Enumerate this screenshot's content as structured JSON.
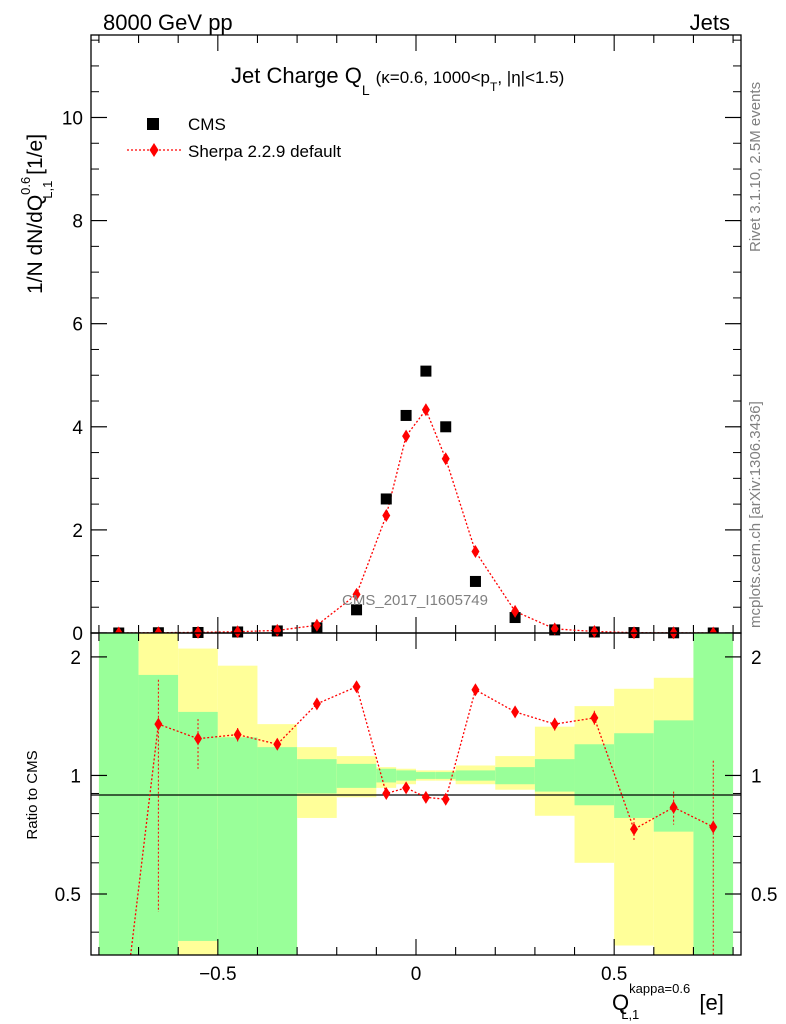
{
  "header": {
    "left": "8000 GeV pp",
    "right": "Jets"
  },
  "side_text": {
    "version": "Rivet 3.1.10,  2.5M events",
    "source": "mcplots.cern.ch [arXiv:1306.3436]"
  },
  "chart_data": [
    {
      "type": "scatter",
      "panel": "main",
      "title": "Jet Charge Q",
      "title_sub": "L",
      "title_extra": "(κ=0.6, 1000<p",
      "title_extra_sub": "T",
      "title_extra_end": ", |η|<1.5)",
      "ylabel": "1/N dN/dQ",
      "ylabel_sup": "0.6",
      "ylabel_sub": "L,1",
      "ylabel_unit": " [1/e]",
      "watermark": "CMS_2017_I1605749",
      "xlim": [
        -0.82,
        0.82
      ],
      "ylim": [
        0,
        11.6
      ],
      "yticks": [
        0,
        2,
        4,
        6,
        8,
        10
      ],
      "yticklabels": [
        "0",
        "2",
        "4",
        "6",
        "8",
        "10"
      ],
      "legend_position": "top-left",
      "series": [
        {
          "name": "CMS",
          "color": "#000000",
          "marker": "square",
          "x": [
            -0.75,
            -0.65,
            -0.55,
            -0.45,
            -0.35,
            -0.25,
            -0.15,
            -0.075,
            -0.025,
            0.025,
            0.075,
            0.15,
            0.25,
            0.35,
            0.45,
            0.55,
            0.65,
            0.75
          ],
          "y": [
            0.0,
            0.005,
            0.01,
            0.02,
            0.04,
            0.1,
            0.45,
            2.6,
            4.22,
            5.08,
            4.0,
            1.0,
            0.3,
            0.06,
            0.02,
            0.008,
            0.004,
            0.0
          ]
        },
        {
          "name": "Sherpa 2.2.9 default",
          "color": "#ff0000",
          "marker": "diamond",
          "line": "dotted",
          "x": [
            -0.75,
            -0.65,
            -0.55,
            -0.45,
            -0.35,
            -0.25,
            -0.15,
            -0.075,
            -0.025,
            0.025,
            0.075,
            0.15,
            0.25,
            0.35,
            0.45,
            0.55,
            0.65,
            0.75
          ],
          "y": [
            0.0,
            0.006,
            0.012,
            0.025,
            0.05,
            0.15,
            0.75,
            2.28,
            3.82,
            4.33,
            3.38,
            1.58,
            0.42,
            0.08,
            0.03,
            0.006,
            0.004,
            0.0
          ]
        }
      ]
    },
    {
      "type": "scatter",
      "panel": "ratio",
      "ylabel": "Ratio to CMS",
      "xlabel": "Q",
      "xlabel_sup": "kappa=0.6",
      "xlabel_sub": "L,1",
      "xlabel_unit": " [e]",
      "xlim": [
        -0.82,
        0.82
      ],
      "ylim": [
        0.35,
        2.3
      ],
      "xticks": [
        -0.5,
        0,
        0.5
      ],
      "xticklabels": [
        "−0.5",
        "0",
        "0.5"
      ],
      "yticks": [
        0.5,
        1,
        2
      ],
      "yticklabels": [
        "0.5",
        "1",
        "2"
      ],
      "band_colors": {
        "inner": "#99ff99",
        "outer": "#ffff99"
      },
      "bands": {
        "edges": [
          -0.8,
          -0.7,
          -0.6,
          -0.5,
          -0.4,
          -0.3,
          -0.2,
          -0.1,
          -0.05,
          0.0,
          0.05,
          0.1,
          0.2,
          0.3,
          0.4,
          0.5,
          0.6,
          0.7,
          0.8
        ],
        "inner_lo": [
          0.1,
          0.1,
          0.38,
          0.1,
          0.1,
          0.9,
          0.93,
          0.96,
          0.97,
          0.98,
          0.98,
          0.97,
          0.95,
          0.91,
          0.84,
          0.78,
          0.72,
          0.1
        ],
        "inner_hi": [
          3.0,
          1.8,
          1.45,
          1.25,
          1.18,
          1.1,
          1.07,
          1.04,
          1.03,
          1.02,
          1.02,
          1.03,
          1.05,
          1.1,
          1.2,
          1.28,
          1.38,
          3.0
        ],
        "outer_lo": [
          0.1,
          0.1,
          0.1,
          0.65,
          0.1,
          0.78,
          0.88,
          0.93,
          0.95,
          0.97,
          0.97,
          0.95,
          0.92,
          0.79,
          0.6,
          0.37,
          0.34,
          0.1
        ],
        "outer_hi": [
          3.0,
          2.3,
          2.1,
          1.9,
          1.35,
          1.18,
          1.12,
          1.05,
          1.04,
          1.03,
          1.03,
          1.06,
          1.12,
          1.33,
          1.5,
          1.66,
          1.77,
          3.0
        ]
      },
      "series": [
        {
          "name": "Sherpa 2.2.9 default",
          "color": "#ff0000",
          "marker": "diamond",
          "line": "dotted",
          "x": [
            -0.65,
            -0.55,
            -0.45,
            -0.35,
            -0.25,
            -0.15,
            -0.075,
            -0.025,
            0.025,
            0.075,
            0.15,
            0.25,
            0.35,
            0.45,
            0.55,
            0.65,
            0.75
          ],
          "y": [
            1.35,
            1.24,
            1.27,
            1.2,
            1.52,
            1.68,
            0.9,
            0.93,
            0.88,
            0.87,
            1.65,
            1.45,
            1.35,
            1.4,
            0.73,
            0.83,
            0.74
          ],
          "err_lo": [
            0.9,
            0.2,
            0.05,
            0.04,
            0.04,
            0.04,
            0.03,
            0.02,
            0.015,
            0.02,
            0.04,
            0.04,
            0.05,
            0.06,
            0.05,
            0.08,
            0.5
          ],
          "err_hi": [
            0.4,
            0.15,
            0.05,
            0.04,
            0.04,
            0.04,
            0.03,
            0.02,
            0.015,
            0.02,
            0.04,
            0.04,
            0.05,
            0.06,
            0.05,
            0.08,
            0.35
          ],
          "first_point_in_range": false,
          "first_x_below": -0.72
        }
      ]
    }
  ]
}
